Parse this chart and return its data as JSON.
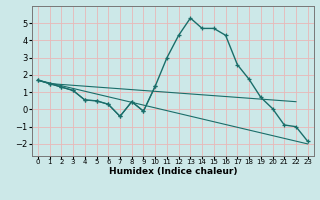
{
  "title": "",
  "xlabel": "Humidex (Indice chaleur)",
  "bg_color": "#cce8e8",
  "grid_color": "#e8b8b8",
  "line_color": "#1a6e6a",
  "xlim": [
    -0.5,
    23.5
  ],
  "ylim": [
    -2.7,
    6.0
  ],
  "xticks": [
    0,
    1,
    2,
    3,
    4,
    5,
    6,
    7,
    8,
    9,
    10,
    11,
    12,
    13,
    14,
    15,
    16,
    17,
    18,
    19,
    20,
    21,
    22,
    23
  ],
  "yticks": [
    -2,
    -1,
    0,
    1,
    2,
    3,
    4,
    5
  ],
  "series": [
    {
      "x": [
        0,
        1,
        2,
        3,
        4,
        5,
        6,
        7,
        8,
        9,
        10,
        11,
        12,
        13,
        14,
        15,
        16,
        17,
        18,
        19,
        20,
        21,
        22,
        23
      ],
      "y": [
        1.7,
        1.5,
        1.3,
        1.1,
        0.55,
        0.5,
        0.3,
        -0.4,
        0.45,
        -0.1,
        1.35,
        3.0,
        4.3,
        5.3,
        4.7,
        4.7,
        4.3,
        2.6,
        1.75,
        0.7,
        0.05,
        -0.9,
        -1.0,
        -1.85
      ],
      "marker": true,
      "lw": 1.0
    },
    {
      "x": [
        0,
        1,
        2,
        3,
        4,
        5,
        6,
        7,
        8,
        9,
        10
      ],
      "y": [
        1.7,
        1.5,
        1.3,
        1.1,
        0.55,
        0.5,
        0.3,
        -0.4,
        0.45,
        -0.1,
        1.35
      ],
      "marker": true,
      "lw": 0.8
    },
    {
      "x": [
        0,
        23
      ],
      "y": [
        1.7,
        -2.0
      ],
      "marker": false,
      "lw": 0.8
    },
    {
      "x": [
        0,
        1,
        2,
        3,
        4,
        5,
        6,
        7,
        8,
        9,
        10,
        11,
        12,
        13,
        14,
        15,
        16,
        17,
        18,
        19,
        20,
        21,
        22
      ],
      "y": [
        1.7,
        1.5,
        1.45,
        1.4,
        1.35,
        1.3,
        1.25,
        1.2,
        1.15,
        1.1,
        1.05,
        1.0,
        0.95,
        0.9,
        0.85,
        0.8,
        0.75,
        0.7,
        0.65,
        0.6,
        0.55,
        0.5,
        0.45
      ],
      "marker": false,
      "lw": 0.8
    }
  ]
}
